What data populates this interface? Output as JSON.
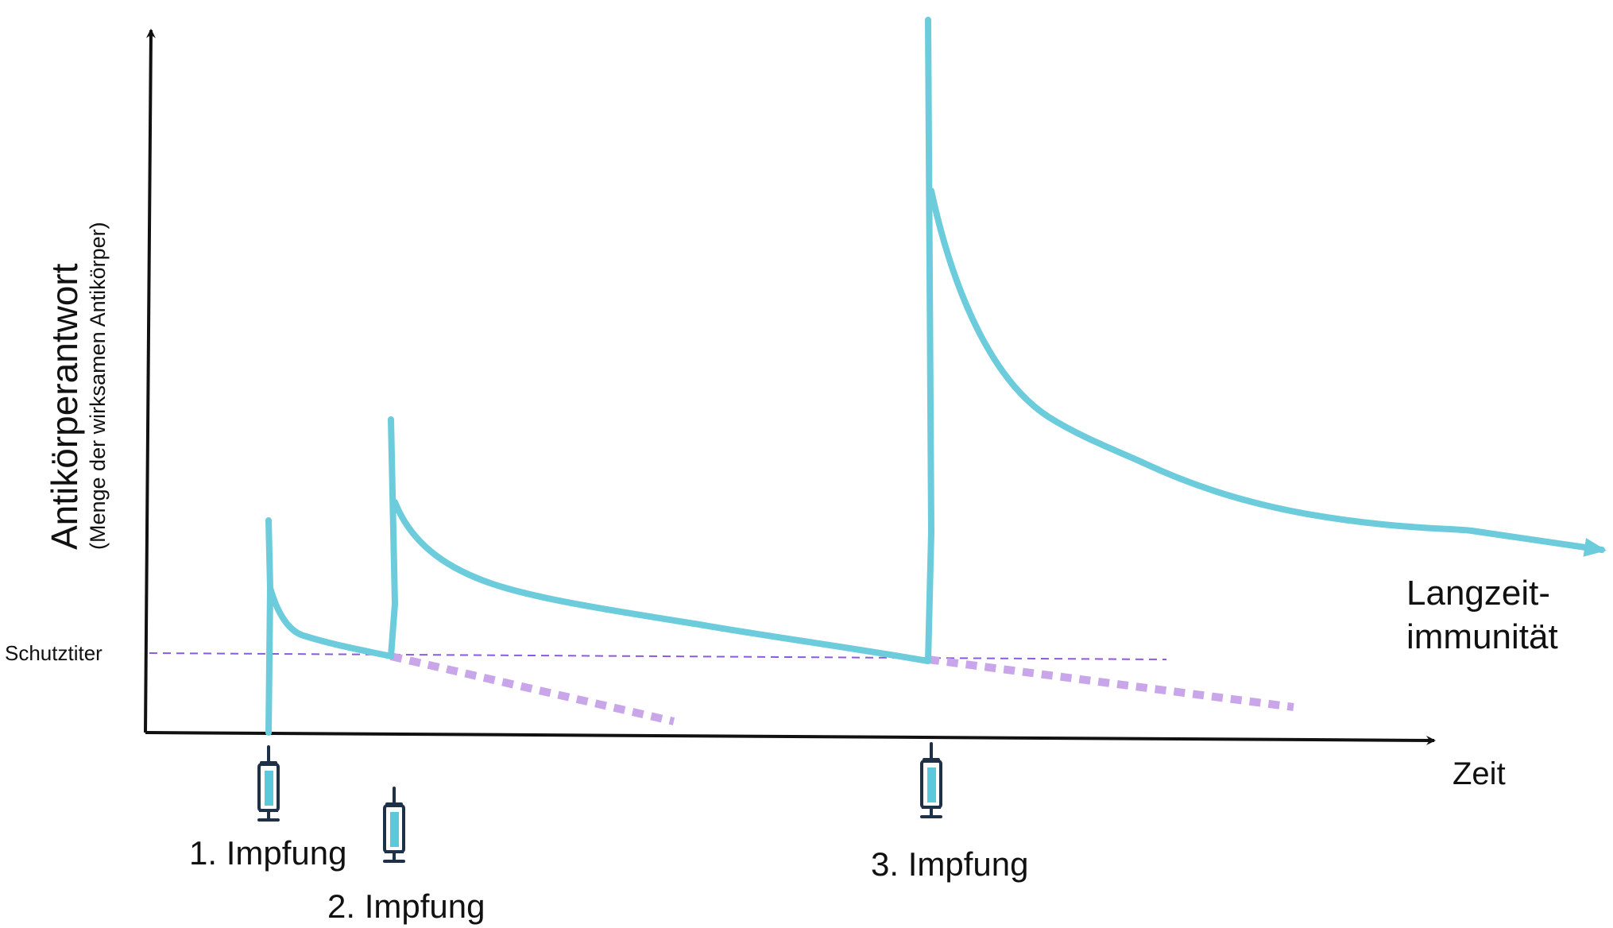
{
  "y_axis": {
    "title": "Antikörperantwort",
    "subtitle": "(Menge der wirksamen Antikörper)"
  },
  "x_axis": {
    "title": "Zeit"
  },
  "reference_line": {
    "label": "Schutztiter"
  },
  "vaccinations": [
    {
      "label": "1. Impfung",
      "icon": "syringe-icon"
    },
    {
      "label": "2. Impfung",
      "icon": "syringe-icon"
    },
    {
      "label": "3. Impfung",
      "icon": "syringe-icon"
    }
  ],
  "end_label": {
    "line1": "Langzeit-",
    "line2": "immunität"
  },
  "colors": {
    "curve": "#6cccdc",
    "decay": "#c9a6ea",
    "reference": "#8a5ae0",
    "axis": "#111111",
    "syringe_outline": "#1f3147",
    "syringe_fill": "#5cc8dc"
  }
}
